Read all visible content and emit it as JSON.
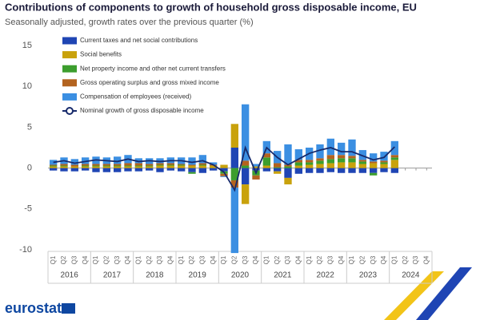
{
  "chart_data": {
    "type": "stacked-bar-line",
    "title": "Contributions of components to growth of household gross disposable income, EU",
    "subtitle": "Seasonally adjusted, growth rates over the previous quarter (%)",
    "categories": [
      "Q1",
      "Q2",
      "Q3",
      "Q4",
      "Q1",
      "Q2",
      "Q3",
      "Q4",
      "Q1",
      "Q2",
      "Q3",
      "Q4",
      "Q1",
      "Q2",
      "Q3",
      "Q4",
      "Q1",
      "Q2",
      "Q3",
      "Q4",
      "Q1",
      "Q2",
      "Q3",
      "Q4",
      "Q1",
      "Q2",
      "Q3",
      "Q4",
      "Q1",
      "Q2",
      "Q3",
      "Q4",
      "Q1",
      "Q2",
      "Q3",
      "Q4"
    ],
    "years": [
      "2016",
      "2017",
      "2018",
      "2019",
      "2020",
      "2021",
      "2022",
      "2023",
      "2024"
    ],
    "ylim": [
      -10,
      15
    ],
    "yticks": [
      -10,
      -5,
      0,
      5,
      10,
      15
    ],
    "series": [
      {
        "name": "Current taxes and net social contributions",
        "color": "#1f45b4",
        "values": [
          -0.3,
          -0.4,
          -0.4,
          -0.3,
          -0.5,
          -0.5,
          -0.5,
          -0.4,
          -0.4,
          -0.3,
          -0.5,
          -0.3,
          -0.4,
          -0.5,
          -0.6,
          -0.3,
          -0.4,
          2.5,
          -2.0,
          -0.3,
          -0.4,
          -0.4,
          -1.2,
          -0.7,
          -0.6,
          -0.6,
          -0.5,
          -0.6,
          -0.6,
          -0.6,
          -0.6,
          -0.5,
          -0.6,
          null,
          null,
          null
        ]
      },
      {
        "name": "Social benefits",
        "color": "#c9a20c",
        "values": [
          0.2,
          0.2,
          0.2,
          0.2,
          0.2,
          0.2,
          0.2,
          0.2,
          0.2,
          0.2,
          0.3,
          0.3,
          0.3,
          0.3,
          0.3,
          0.3,
          0.4,
          2.9,
          -2.4,
          0.2,
          0.3,
          -0.3,
          -0.8,
          0.3,
          0.4,
          0.5,
          0.6,
          0.7,
          0.7,
          0.5,
          0.6,
          0.5,
          1.0,
          null,
          null,
          null
        ]
      },
      {
        "name": "Net property income and other net current transfers",
        "color": "#3c9e2e",
        "values": [
          0.1,
          0.1,
          0,
          0.1,
          0.1,
          0.1,
          0.1,
          0.1,
          0.1,
          0.1,
          0.1,
          0.1,
          0.1,
          -0.2,
          0.1,
          0,
          -0.3,
          -1.5,
          0.3,
          -0.6,
          1.0,
          0.1,
          0.2,
          0.4,
          0.3,
          0.4,
          0.5,
          0.5,
          0.5,
          0.3,
          -0.3,
          0.2,
          0.3,
          null,
          null,
          null
        ]
      },
      {
        "name": "Gross operating surplus and gross mixed income",
        "color": "#b3631f",
        "values": [
          0.1,
          0.2,
          0.2,
          0.2,
          0.2,
          0.2,
          0.2,
          0.3,
          0.3,
          0.2,
          0.2,
          0.2,
          0.1,
          0.1,
          0.2,
          0.1,
          -0.3,
          -0.9,
          0.6,
          -0.5,
          0.5,
          0.5,
          0.2,
          0.3,
          0.3,
          0.3,
          0.5,
          0.4,
          0.3,
          0.2,
          0.2,
          0.2,
          0.3,
          null,
          null,
          null
        ]
      },
      {
        "name": "Compensation of employees (received)",
        "color": "#3b8fe2",
        "values": [
          0.6,
          0.8,
          0.7,
          0.8,
          0.9,
          0.8,
          0.9,
          1.0,
          0.6,
          0.7,
          0.6,
          0.7,
          0.8,
          0.9,
          1.0,
          0.3,
          -0.1,
          -8.0,
          6.9,
          0.3,
          1.5,
          1.5,
          2.5,
          1.3,
          1.5,
          1.7,
          2.0,
          1.5,
          2.0,
          1.2,
          1.0,
          1.1,
          1.7,
          null,
          null,
          null
        ]
      },
      {
        "name": "Nominal growth of gross disposable income",
        "color": "#172a6b",
        "kind": "line",
        "values": [
          0.7,
          0.9,
          0.6,
          0.8,
          1.0,
          0.9,
          0.8,
          1.1,
          0.8,
          0.9,
          0.8,
          0.9,
          0.9,
          0.7,
          0.9,
          0.4,
          -0.5,
          -2.7,
          2.5,
          -0.6,
          2.5,
          1.3,
          0.4,
          1.1,
          1.8,
          2.2,
          2.5,
          2.0,
          2.0,
          1.5,
          1.0,
          1.3,
          2.6,
          null,
          null,
          null
        ]
      }
    ],
    "source": "eurostat"
  }
}
